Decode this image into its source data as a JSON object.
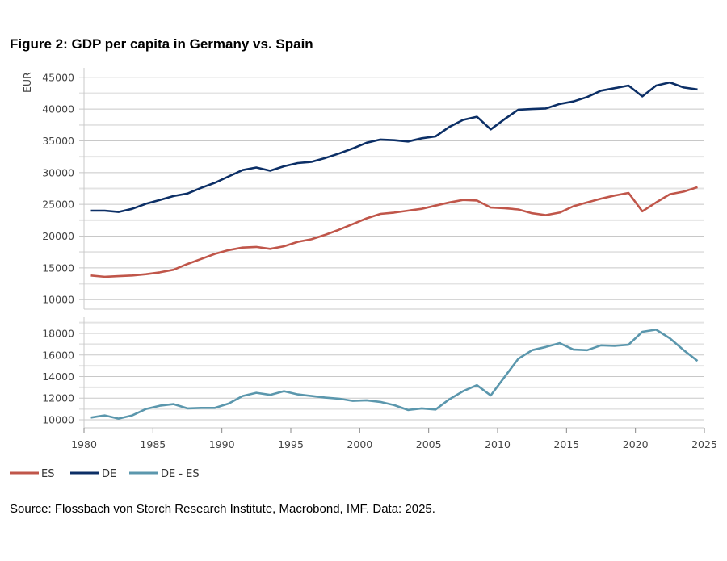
{
  "title": "Figure 2: GDP per capita in Germany vs. Spain",
  "source": "Source: Flossbach von Storch Research Institute, Macrobond, IMF. Data: 2025.",
  "chart_data": [
    {
      "type": "line",
      "panel": "top",
      "ylabel": "EUR",
      "ylim": [
        8500,
        46500
      ],
      "yticks": [
        10000,
        15000,
        20000,
        25000,
        30000,
        35000,
        40000,
        45000
      ],
      "xlim": [
        1980,
        2025
      ],
      "grid": true,
      "x": [
        1980,
        1981,
        1982,
        1983,
        1984,
        1985,
        1986,
        1987,
        1988,
        1989,
        1990,
        1991,
        1992,
        1993,
        1994,
        1995,
        1996,
        1997,
        1998,
        1999,
        2000,
        2001,
        2002,
        2003,
        2004,
        2005,
        2006,
        2007,
        2008,
        2009,
        2010,
        2011,
        2012,
        2013,
        2014,
        2015,
        2016,
        2017,
        2018,
        2019,
        2020,
        2021,
        2022,
        2023,
        2024
      ],
      "series": [
        {
          "name": "ES",
          "color": "#c0564a",
          "values": [
            13800,
            13600,
            13700,
            13800,
            14000,
            14300,
            14700,
            15600,
            16400,
            17200,
            17800,
            18200,
            18300,
            18000,
            18400,
            19100,
            19500,
            20200,
            21000,
            21900,
            22800,
            23500,
            23700,
            24000,
            24300,
            24800,
            25300,
            25700,
            25600,
            24500,
            24400,
            24200,
            23600,
            23300,
            23700,
            24700,
            25300,
            25900,
            26400,
            26800,
            23900,
            25300,
            26600,
            27000,
            27700
          ]
        },
        {
          "name": "DE",
          "color": "#0c2f66",
          "values": [
            24000,
            24000,
            23800,
            24300,
            25100,
            25700,
            26300,
            26700,
            27600,
            28400,
            29400,
            30400,
            30800,
            30300,
            31000,
            31500,
            31700,
            32300,
            33000,
            33800,
            34700,
            35200,
            35100,
            34900,
            35400,
            35700,
            37200,
            38300,
            38800,
            36800,
            38400,
            39900,
            40000,
            40100,
            40800,
            41200,
            41900,
            42900,
            43300,
            43700,
            42000,
            43700,
            44200,
            43400,
            43100
          ]
        }
      ]
    },
    {
      "type": "line",
      "panel": "bottom",
      "ylim": [
        9250,
        19500
      ],
      "yticks": [
        10000,
        12000,
        14000,
        16000,
        18000
      ],
      "xlim": [
        1980,
        2025
      ],
      "xticks": [
        1980,
        1985,
        1990,
        1995,
        2000,
        2005,
        2010,
        2015,
        2020,
        2025
      ],
      "grid": true,
      "x": [
        1980,
        1981,
        1982,
        1983,
        1984,
        1985,
        1986,
        1987,
        1988,
        1989,
        1990,
        1991,
        1992,
        1993,
        1994,
        1995,
        1996,
        1997,
        1998,
        1999,
        2000,
        2001,
        2002,
        2003,
        2004,
        2005,
        2006,
        2007,
        2008,
        2009,
        2010,
        2011,
        2012,
        2013,
        2014,
        2015,
        2016,
        2017,
        2018,
        2019,
        2020,
        2021,
        2022,
        2023,
        2024
      ],
      "series": [
        {
          "name": "DE - ES",
          "color": "#5b97ad",
          "values": [
            10200,
            10400,
            10100,
            10400,
            11000,
            11300,
            11450,
            11050,
            11100,
            11100,
            11500,
            12200,
            12500,
            12300,
            12650,
            12350,
            12200,
            12050,
            11950,
            11750,
            11800,
            11650,
            11350,
            10900,
            11050,
            10950,
            11900,
            12650,
            13200,
            12250,
            13950,
            15650,
            16450,
            16750,
            17100,
            16500,
            16450,
            16900,
            16850,
            16950,
            18150,
            18350,
            17550,
            16450,
            15450
          ]
        }
      ]
    }
  ],
  "legend": {
    "placement": "bottom-left",
    "items": [
      "ES",
      "DE",
      "DE - ES"
    ]
  }
}
